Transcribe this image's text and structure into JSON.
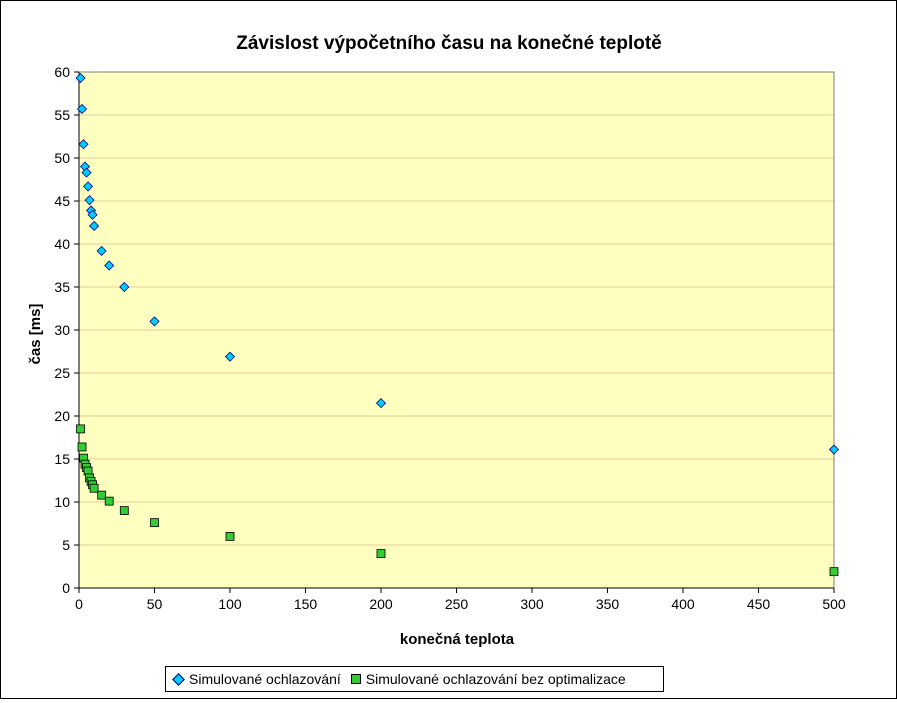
{
  "chart_data": {
    "type": "scatter",
    "title": "Závislost výpočetního času na konečné teplotě",
    "xlabel": "konečná teplota",
    "ylabel": "čas [ms]",
    "xlim": [
      0,
      500
    ],
    "ylim": [
      0,
      60
    ],
    "x_ticks": [
      0,
      50,
      100,
      150,
      200,
      250,
      300,
      350,
      400,
      450,
      500
    ],
    "y_ticks": [
      0,
      5,
      10,
      15,
      20,
      25,
      30,
      35,
      40,
      45,
      50,
      55,
      60
    ],
    "grid": "horizontal",
    "legend_position": "bottom",
    "plot_background": "#ffffc0",
    "series": [
      {
        "name": "Simulované ochlazování",
        "marker": "diamond",
        "color": "#00ccff",
        "x": [
          1,
          2,
          3,
          4,
          5,
          6,
          7,
          8,
          9,
          10,
          15,
          20,
          30,
          50,
          100,
          200,
          500
        ],
        "y": [
          59.3,
          55.7,
          51.6,
          49.0,
          48.3,
          46.7,
          45.1,
          43.9,
          43.4,
          42.1,
          39.2,
          37.5,
          35.0,
          31.0,
          26.9,
          21.5,
          16.1
        ]
      },
      {
        "name": "Simulované ochlazování bez optimalizace",
        "marker": "square",
        "color": "#33cc33",
        "x": [
          1,
          2,
          3,
          4,
          5,
          6,
          7,
          8,
          9,
          10,
          15,
          20,
          30,
          50,
          100,
          200,
          500
        ],
        "y": [
          18.5,
          16.4,
          15.1,
          14.4,
          14.0,
          13.6,
          12.8,
          12.4,
          12.0,
          11.6,
          10.8,
          10.1,
          9.0,
          7.6,
          6.0,
          4.0,
          1.9
        ]
      }
    ]
  }
}
